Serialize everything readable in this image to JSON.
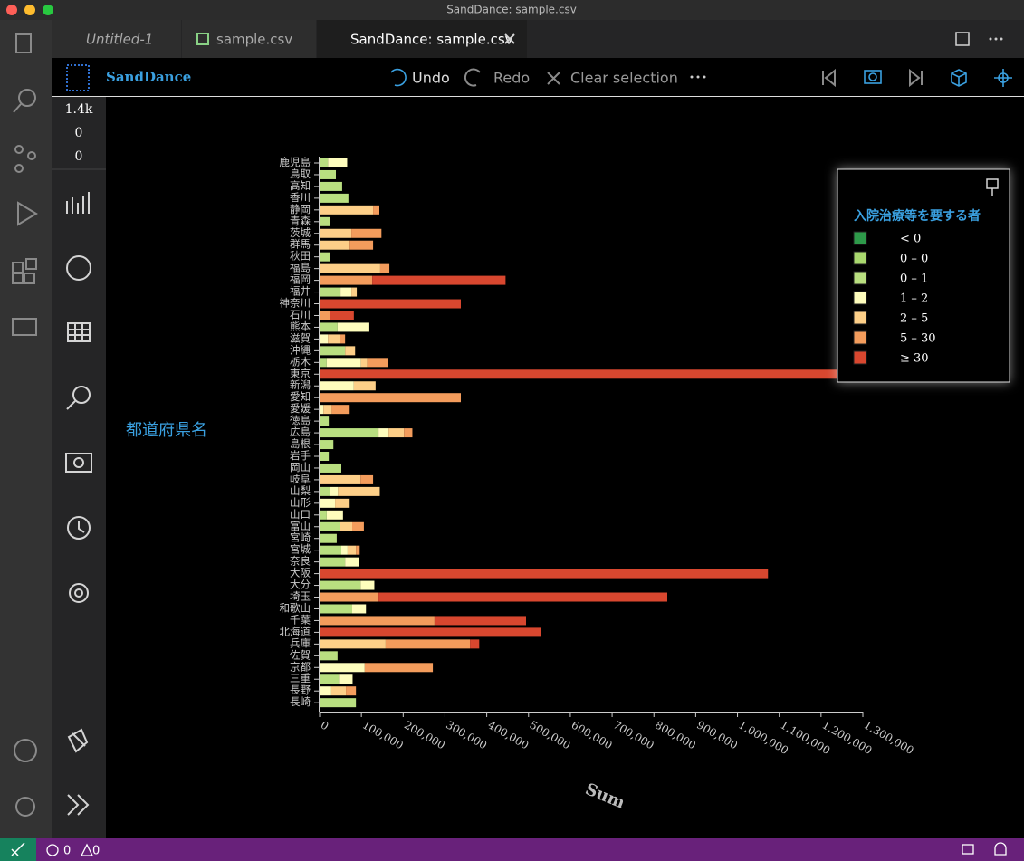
{
  "window_title": "SandDance: sample.csv",
  "tabs": [
    "Untitled-1",
    "sample.csv",
    "SandDance: sample.csv"
  ],
  "toolbar": {
    "brand": "SandDance",
    "undo": "Undo",
    "redo": "Redo",
    "clear": "Clear selection"
  },
  "counts": [
    "1.4k",
    "0",
    "0"
  ],
  "status": {
    "errors": "0",
    "warnings": "0"
  },
  "chart_data": {
    "type": "bar",
    "orientation": "horizontal",
    "stacked": true,
    "y_label": "都道府県名",
    "x_label": "Sum",
    "legend_title": "入院治療等を要する者",
    "categories": [
      "鹿児島",
      "鳥取",
      "高知",
      "香川",
      "静岡",
      "青森",
      "茨城",
      "群馬",
      "秋田",
      "福島",
      "福岡",
      "福井",
      "神奈川",
      "石川",
      "熊本",
      "滋賀",
      "沖縄",
      "栃木",
      "東京",
      "新潟",
      "愛知",
      "愛媛",
      "徳島",
      "広島",
      "島根",
      "岩手",
      "岡山",
      "岐阜",
      "山梨",
      "山形",
      "山口",
      "富山",
      "宮崎",
      "宮城",
      "奈良",
      "大阪",
      "大分",
      "埼玉",
      "和歌山",
      "千葉",
      "北海道",
      "兵庫",
      "佐賀",
      "京都",
      "三重",
      "長野",
      "長崎"
    ],
    "series": [
      {
        "name": "< 0",
        "color": "#2e9a4a",
        "values": [
          0,
          0,
          0,
          0,
          0,
          0,
          0,
          0,
          0,
          0,
          0,
          0,
          0,
          0,
          0,
          0,
          0,
          0,
          0,
          0,
          0,
          0,
          0,
          0,
          0,
          0,
          0,
          0,
          0,
          0,
          0,
          0,
          0,
          0,
          0,
          0,
          0,
          0,
          0,
          0,
          0,
          0,
          0,
          0,
          0,
          0,
          0
        ]
      },
      {
        "name": "0 – 0",
        "color": "#a9d86e",
        "values": [
          0,
          0,
          0,
          0,
          0,
          0,
          0,
          0,
          0,
          0,
          0,
          0,
          0,
          0,
          0,
          0,
          0,
          0,
          0,
          0,
          0,
          0,
          0,
          0,
          0,
          0,
          0,
          0,
          0,
          0,
          0,
          0,
          0,
          0,
          0,
          0,
          0,
          0,
          0,
          0,
          0,
          0,
          0,
          0,
          0,
          0,
          0
        ]
      },
      {
        "name": "0 – 1",
        "color": "#b9df80",
        "values": [
          20000,
          39000,
          54000,
          69000,
          0,
          24000,
          0,
          0,
          24000,
          0,
          0,
          50000,
          0,
          0,
          43000,
          0,
          61000,
          17000,
          0,
          0,
          0,
          0,
          22000,
          141000,
          33000,
          22000,
          52000,
          0,
          24000,
          0,
          17000,
          48000,
          41000,
          52000,
          61000,
          0,
          98000,
          0,
          78000,
          0,
          0,
          0,
          43000,
          0,
          46000,
          0,
          87000
        ]
      },
      {
        "name": "1 – 2",
        "color": "#fefdbd",
        "values": [
          46000,
          0,
          0,
          0,
          0,
          0,
          0,
          0,
          0,
          0,
          0,
          26000,
          0,
          0,
          76000,
          20000,
          0,
          82000,
          0,
          82000,
          0,
          9000,
          0,
          24000,
          0,
          0,
          0,
          0,
          20000,
          37000,
          39000,
          0,
          0,
          15000,
          33000,
          0,
          33000,
          0,
          33000,
          0,
          0,
          0,
          0,
          108000,
          33000,
          28000,
          0
        ]
      },
      {
        "name": "2 – 5",
        "color": "#fdcf88",
        "values": [
          0,
          0,
          0,
          0,
          128000,
          0,
          76000,
          72000,
          0,
          145000,
          0,
          13000,
          0,
          0,
          0,
          28000,
          24000,
          15000,
          0,
          52000,
          0,
          20000,
          0,
          37000,
          0,
          0,
          0,
          98000,
          100000,
          35000,
          0,
          30000,
          0,
          20000,
          0,
          0,
          0,
          0,
          0,
          0,
          0,
          158000,
          0,
          0,
          0,
          35000,
          0
        ]
      },
      {
        "name": "5 – 30",
        "color": "#f39c5c",
        "values": [
          0,
          0,
          0,
          0,
          15000,
          0,
          72000,
          56000,
          0,
          22000,
          126000,
          0,
          0,
          26000,
          0,
          13000,
          0,
          50000,
          0,
          0,
          338000,
          43000,
          0,
          20000,
          0,
          0,
          0,
          30000,
          0,
          0,
          0,
          28000,
          0,
          9000,
          0,
          0,
          0,
          141000,
          0,
          275000,
          0,
          202000,
          0,
          163000,
          0,
          24000,
          0
        ]
      },
      {
        "name": "≥ 30",
        "color": "#d8472f",
        "values": [
          0,
          0,
          0,
          0,
          0,
          0,
          0,
          0,
          0,
          0,
          319000,
          0,
          338000,
          56000,
          0,
          0,
          0,
          0,
          1268000,
          0,
          0,
          0,
          0,
          0,
          0,
          0,
          0,
          0,
          0,
          0,
          0,
          0,
          0,
          0,
          0,
          1073000,
          0,
          691000,
          0,
          219000,
          529000,
          22000,
          0,
          0,
          0,
          0,
          0
        ]
      }
    ],
    "xlim": [
      0,
      1300000
    ],
    "xticks": [
      0,
      {
        "value": 100000,
        "label": "100,000"
      },
      {
        "value": 200000,
        "label": "200,000"
      },
      {
        "value": 300000,
        "label": "300,000"
      },
      {
        "value": 400000,
        "label": "400,000"
      },
      {
        "value": 500000,
        "label": "500,000"
      },
      {
        "value": 600000,
        "label": "600,000"
      },
      {
        "value": 700000,
        "label": "700,000"
      },
      {
        "value": 800000,
        "label": "800,000"
      },
      {
        "value": 900000,
        "label": "900,000"
      },
      {
        "value": 1000000,
        "label": "1,000,000"
      },
      {
        "value": 1100000,
        "label": "1,100,000"
      },
      {
        "value": 1200000,
        "label": "1,200,000"
      },
      {
        "value": 1300000,
        "label": "1,300,000"
      }
    ],
    "grid": false,
    "legend": "top-right"
  }
}
